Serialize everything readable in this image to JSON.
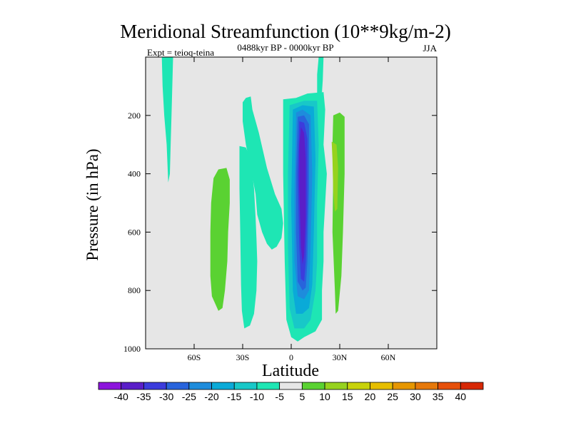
{
  "chart_data": {
    "type": "heatmap",
    "title": "Meridional Streamfunction (10**9kg/m-2)",
    "subtitle": "0488kyr BP - 0000kyr BP",
    "left_string": "Expt = teioq-teina",
    "right_string": "JJA",
    "xlabel": "Latitude",
    "ylabel": "Pressure (in hPa)",
    "x_range": [
      -90,
      90
    ],
    "y_range": [
      0,
      1000
    ],
    "y_inverted": true,
    "x_ticks": [
      {
        "value": -60,
        "label": "60S"
      },
      {
        "value": -30,
        "label": "30S"
      },
      {
        "value": 0,
        "label": "0"
      },
      {
        "value": 30,
        "label": "30N"
      },
      {
        "value": 60,
        "label": "60N"
      }
    ],
    "y_ticks": [
      {
        "value": 200,
        "label": "200"
      },
      {
        "value": 400,
        "label": "400"
      },
      {
        "value": 600,
        "label": "600"
      },
      {
        "value": 800,
        "label": "800"
      },
      {
        "value": 1000,
        "label": "1000"
      }
    ],
    "background_color": "#e6e6e6",
    "colorbar": {
      "labels": [
        "-40",
        "-35",
        "-30",
        "-25",
        "-20",
        "-15",
        "-10",
        "-5",
        "5",
        "10",
        "15",
        "20",
        "25",
        "30",
        "35",
        "40"
      ],
      "colors": [
        "#8c14dc",
        "#5a1ec8",
        "#3c3cdc",
        "#2864dc",
        "#1e8cdc",
        "#0aaad8",
        "#18c8c8",
        "#1ee6b4",
        "#e6e6e6",
        "#5ad232",
        "#96d21e",
        "#c8d20a",
        "#e6be00",
        "#e69600",
        "#e6780a",
        "#e6500a",
        "#d72805"
      ]
    },
    "regions": [
      {
        "name": "cyan-plume-80S",
        "level": "-5",
        "points": [
          [
            -80,
            0
          ],
          [
            -73,
            0
          ],
          [
            -73.5,
            100
          ],
          [
            -74,
            200
          ],
          [
            -74.5,
            300
          ],
          [
            -75,
            400
          ],
          [
            -76,
            430
          ],
          [
            -77,
            300
          ],
          [
            -78.5,
            200
          ],
          [
            -79.5,
            100
          ]
        ]
      },
      {
        "name": "green-blob-45S",
        "level": "5",
        "points": [
          [
            -48,
            415
          ],
          [
            -45,
            385
          ],
          [
            -40,
            380
          ],
          [
            -38,
            420
          ],
          [
            -38,
            500
          ],
          [
            -39,
            600
          ],
          [
            -39.5,
            700
          ],
          [
            -41,
            800
          ],
          [
            -42.5,
            860
          ],
          [
            -45,
            870
          ],
          [
            -49,
            820
          ],
          [
            -50,
            750
          ],
          [
            -50,
            600
          ],
          [
            -49.5,
            500
          ]
        ]
      },
      {
        "name": "cyan-plume-25S",
        "level": "-5",
        "points": [
          [
            -32,
            305
          ],
          [
            -28,
            310
          ],
          [
            -25,
            350
          ],
          [
            -23,
            450
          ],
          [
            -22,
            550
          ],
          [
            -21.5,
            620
          ],
          [
            -21,
            700
          ],
          [
            -21.5,
            800
          ],
          [
            -23,
            880
          ],
          [
            -25.5,
            920
          ],
          [
            -29,
            930
          ],
          [
            -30.5,
            870
          ],
          [
            -31,
            780
          ],
          [
            -31.5,
            600
          ],
          [
            -32,
            450
          ]
        ]
      },
      {
        "name": "cyan-band-diagonal",
        "level": "-5",
        "points": [
          [
            -30,
            155
          ],
          [
            -28,
            140
          ],
          [
            -25,
            135
          ],
          [
            -24,
            180
          ],
          [
            -20,
            260
          ],
          [
            -15,
            380
          ],
          [
            -10,
            470
          ],
          [
            -6,
            520
          ],
          [
            -5,
            570
          ],
          [
            -6,
            620
          ],
          [
            -9,
            650
          ],
          [
            -12,
            660
          ],
          [
            -15,
            640
          ],
          [
            -18,
            600
          ],
          [
            -21,
            540
          ],
          [
            -22,
            470
          ],
          [
            -25,
            380
          ],
          [
            -28,
            300
          ],
          [
            -30,
            220
          ]
        ]
      },
      {
        "name": "cyan-core-equator",
        "level": "-5",
        "points": [
          [
            -5,
            145
          ],
          [
            3,
            140
          ],
          [
            10,
            125
          ],
          [
            20,
            120
          ],
          [
            21,
            180
          ],
          [
            20,
            300
          ],
          [
            22,
            400
          ],
          [
            21,
            500
          ],
          [
            20,
            600
          ],
          [
            20,
            700
          ],
          [
            19,
            800
          ],
          [
            19,
            900
          ],
          [
            15,
            940
          ],
          [
            8,
            960
          ],
          [
            4,
            975
          ],
          [
            0,
            960
          ],
          [
            -3,
            900
          ],
          [
            -4,
            700
          ],
          [
            -5,
            400
          ]
        ]
      },
      {
        "name": "cyan-plume-20N",
        "level": "-5",
        "points": [
          [
            17,
            0
          ],
          [
            20,
            0
          ],
          [
            19.5,
            80
          ],
          [
            19,
            120
          ],
          [
            16,
            130
          ],
          [
            16,
            60
          ]
        ]
      },
      {
        "name": "level-10-ring",
        "level": "-10",
        "points": [
          [
            -1,
            165
          ],
          [
            8,
            150
          ],
          [
            16,
            150
          ],
          [
            17,
            300
          ],
          [
            16,
            500
          ],
          [
            16,
            700
          ],
          [
            15,
            800
          ],
          [
            12,
            900
          ],
          [
            8,
            930
          ],
          [
            2,
            930
          ],
          [
            -1,
            860
          ],
          [
            -2,
            650
          ],
          [
            -2,
            400
          ]
        ]
      },
      {
        "name": "level-15-ring",
        "level": "-15",
        "points": [
          [
            1,
            180
          ],
          [
            7,
            165
          ],
          [
            14,
            170
          ],
          [
            15,
            350
          ],
          [
            14,
            600
          ],
          [
            13,
            780
          ],
          [
            11,
            860
          ],
          [
            7,
            880
          ],
          [
            3,
            880
          ],
          [
            1,
            800
          ],
          [
            0,
            500
          ]
        ]
      },
      {
        "name": "level-20-ring",
        "level": "-20",
        "points": [
          [
            3,
            190
          ],
          [
            7,
            180
          ],
          [
            12,
            200
          ],
          [
            13,
            400
          ],
          [
            12,
            650
          ],
          [
            11,
            800
          ],
          [
            8,
            830
          ],
          [
            4,
            820
          ],
          [
            2,
            700
          ],
          [
            2,
            450
          ]
        ]
      },
      {
        "name": "level-25-ring",
        "level": "-25",
        "points": [
          [
            4,
            205
          ],
          [
            8,
            200
          ],
          [
            11,
            230
          ],
          [
            11,
            450
          ],
          [
            10,
            700
          ],
          [
            9,
            790
          ],
          [
            7,
            800
          ],
          [
            4,
            770
          ],
          [
            3,
            600
          ],
          [
            3,
            400
          ]
        ]
      },
      {
        "name": "level-30-ring",
        "level": "-30",
        "points": [
          [
            5,
            220
          ],
          [
            8,
            225
          ],
          [
            10,
            280
          ],
          [
            10,
            500
          ],
          [
            9,
            700
          ],
          [
            8,
            770
          ],
          [
            6,
            760
          ],
          [
            5,
            650
          ],
          [
            4,
            400
          ]
        ]
      },
      {
        "name": "level-35-core",
        "level": "-35",
        "points": [
          [
            6,
            240
          ],
          [
            8,
            260
          ],
          [
            9,
            350
          ],
          [
            9,
            550
          ],
          [
            8,
            680
          ],
          [
            7,
            710
          ],
          [
            6,
            650
          ],
          [
            5,
            450
          ],
          [
            5,
            300
          ]
        ]
      },
      {
        "name": "green-blob-30N",
        "level": "5",
        "points": [
          [
            26,
            200
          ],
          [
            30,
            190
          ],
          [
            33,
            205
          ],
          [
            33,
            400
          ],
          [
            32,
            600
          ],
          [
            31,
            750
          ],
          [
            29,
            870
          ],
          [
            27.5,
            880
          ],
          [
            27,
            800
          ],
          [
            25.5,
            600
          ],
          [
            26,
            400
          ],
          [
            25.5,
            300
          ]
        ]
      },
      {
        "name": "yellow-green-core-30N",
        "level": "10",
        "points": [
          [
            25,
            290
          ],
          [
            28,
            300
          ],
          [
            29,
            380
          ],
          [
            28.5,
            520
          ],
          [
            27,
            530
          ],
          [
            26,
            460
          ],
          [
            25.5,
            350
          ]
        ]
      }
    ]
  }
}
